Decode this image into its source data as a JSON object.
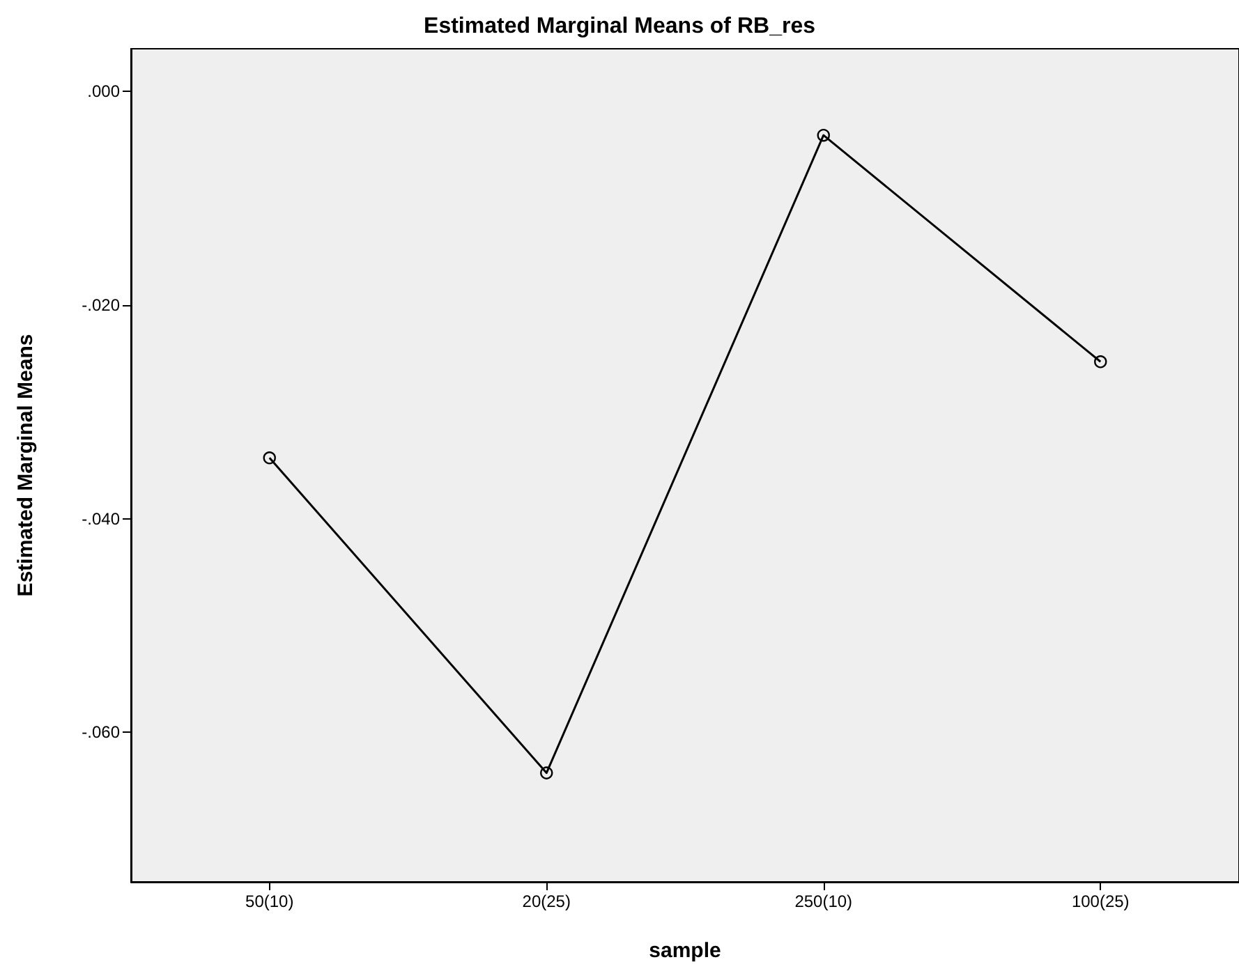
{
  "chart_data": {
    "type": "line",
    "title": "Estimated Marginal Means of RB_res",
    "xlabel": "sample",
    "ylabel": "Estimated Marginal Means",
    "categories": [
      "50(10)",
      "20(25)",
      "250(10)",
      "100(25)"
    ],
    "series": [
      {
        "color": "#000000",
        "values": [
          -0.0343,
          -0.0638,
          -0.0041,
          -0.0253
        ]
      }
    ],
    "ylim": [
      -0.074,
      0.004
    ],
    "yticks": [
      {
        "value": 0,
        "label": ".000"
      },
      {
        "value": -0.02,
        "label": "-.020"
      },
      {
        "value": -0.04,
        "label": "-.040"
      },
      {
        "value": -0.06,
        "label": "-.060"
      }
    ],
    "grid": false,
    "marker": "circle",
    "line_style": "solid"
  }
}
